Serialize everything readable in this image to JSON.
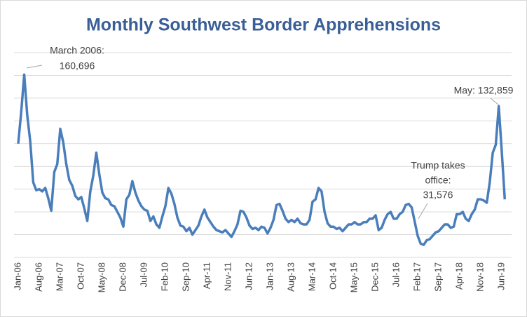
{
  "chart_data": {
    "type": "line",
    "title": "Monthly Southwest Border Apprehensions",
    "categories": [
      "Jan-06",
      null,
      null,
      null,
      null,
      null,
      null,
      "Aug-06",
      null,
      null,
      null,
      null,
      null,
      null,
      "Mar-07",
      null,
      null,
      null,
      null,
      null,
      null,
      "Oct-07",
      null,
      null,
      null,
      null,
      null,
      null,
      "May-08",
      null,
      null,
      null,
      null,
      null,
      null,
      "Dec-08",
      null,
      null,
      null,
      null,
      null,
      null,
      "Jul-09",
      null,
      null,
      null,
      null,
      null,
      null,
      "Feb-10",
      null,
      null,
      null,
      null,
      null,
      null,
      "Sep-10",
      null,
      null,
      null,
      null,
      null,
      null,
      "Apr-11",
      null,
      null,
      null,
      null,
      null,
      null,
      "Nov-11",
      null,
      null,
      null,
      null,
      null,
      null,
      "Jun-12",
      null,
      null,
      null,
      null,
      null,
      null,
      "Jan-13",
      null,
      null,
      null,
      null,
      null,
      null,
      "Aug-13",
      null,
      null,
      null,
      null,
      null,
      null,
      "Mar-14",
      null,
      null,
      null,
      null,
      null,
      null,
      "Oct-14",
      null,
      null,
      null,
      null,
      null,
      null,
      "May-15",
      null,
      null,
      null,
      null,
      null,
      null,
      "Dec-15",
      null,
      null,
      null,
      null,
      null,
      null,
      "Jul-16",
      null,
      null,
      null,
      null,
      null,
      null,
      "Feb-17",
      null,
      null,
      null,
      null,
      null,
      null,
      "Sep-17",
      null,
      null,
      null,
      null,
      null,
      null,
      "Apr-18",
      null,
      null,
      null,
      null,
      null,
      null,
      "Nov-18",
      null,
      null,
      null,
      null,
      null,
      null,
      "Jun-19",
      null
    ],
    "series": [
      {
        "name": "Apprehensions",
        "color": "#4a7ebb",
        "values": [
          100000,
          128000,
          160696,
          125000,
          102000,
          66000,
          59000,
          60000,
          58000,
          61000,
          52000,
          41000,
          75000,
          82000,
          113000,
          101000,
          82000,
          68000,
          63000,
          54000,
          51000,
          53000,
          43000,
          32000,
          58000,
          72000,
          92000,
          73000,
          57000,
          52000,
          51000,
          46000,
          45000,
          40000,
          35000,
          27000,
          51000,
          55000,
          67000,
          57000,
          50000,
          45000,
          42000,
          41000,
          32000,
          36000,
          29000,
          26000,
          36000,
          45000,
          61000,
          56000,
          47000,
          35000,
          28000,
          27000,
          23000,
          26000,
          20000,
          24000,
          28000,
          36000,
          42000,
          35000,
          31000,
          27000,
          24000,
          23000,
          22000,
          24000,
          21000,
          18000,
          23000,
          29000,
          41000,
          40000,
          35000,
          28000,
          25000,
          26000,
          24000,
          27000,
          26000,
          21000,
          26000,
          33000,
          46000,
          47000,
          41000,
          34000,
          31000,
          33000,
          31000,
          34000,
          30000,
          29000,
          29000,
          33000,
          49000,
          51000,
          61000,
          58000,
          40000,
          30000,
          27000,
          27000,
          25000,
          26000,
          23000,
          26000,
          29000,
          29000,
          31000,
          29000,
          29000,
          31000,
          31000,
          34000,
          34000,
          37000,
          24000,
          26000,
          33000,
          38000,
          40000,
          34000,
          34000,
          38000,
          40000,
          46000,
          47000,
          44000,
          31576,
          19000,
          12000,
          11000,
          15000,
          16000,
          19000,
          22000,
          23000,
          26000,
          29000,
          29000,
          26000,
          27000,
          38000,
          38000,
          40000,
          34000,
          32000,
          38000,
          42000,
          51000,
          51000,
          50000,
          48000,
          66000,
          92000,
          99000,
          132859,
          93000,
          51000
        ]
      }
    ],
    "ylim": [
      0,
      180000
    ],
    "yticks": [
      0,
      20000,
      40000,
      60000,
      80000,
      100000,
      120000,
      140000,
      160000,
      180000
    ],
    "show_ytick_labels": false,
    "grid": true,
    "annotations": [
      {
        "lines": [
          "March 2006:",
          "160,696"
        ]
      },
      {
        "lines": [
          "May: 132,859"
        ]
      },
      {
        "lines": [
          "Trump takes",
          "office:",
          "31,576"
        ]
      }
    ]
  }
}
